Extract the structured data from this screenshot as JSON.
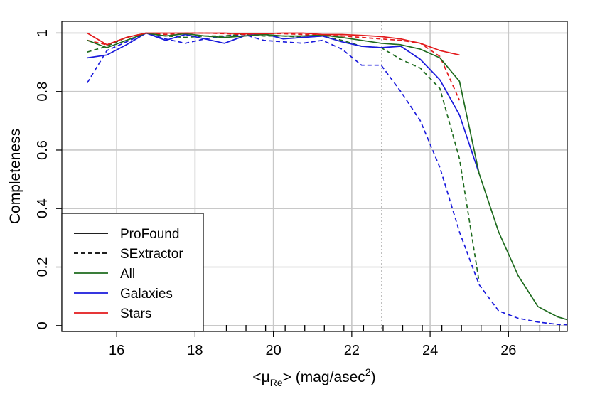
{
  "chart_data": {
    "type": "line",
    "title": "",
    "ylabel": "Completeness",
    "xlabel": {
      "prefix": "<μ",
      "subscript": "Re",
      "middle": "> (mag/asec",
      "superscript": "2",
      "suffix": ")"
    },
    "xlim": [
      14.6,
      27.5
    ],
    "ylim": [
      -0.02,
      1.04
    ],
    "x_ticks": [
      16,
      18,
      20,
      22,
      24,
      26
    ],
    "y_ticks": [
      0,
      0.2,
      0.4,
      0.6,
      0.8,
      1
    ],
    "grid": true,
    "reference_line": {
      "x": 22.77,
      "style": "dotted"
    },
    "rug_x": [
      18.8,
      19.3,
      19.8,
      20.3,
      20.8,
      21.3,
      21.8,
      22.3,
      22.8,
      23.3,
      23.8,
      24.3,
      24.8,
      25.3,
      25.8,
      26.3,
      26.8,
      27.3
    ],
    "legend": {
      "position": "bottom-left",
      "entries": [
        {
          "label": "ProFound",
          "color": "#000000",
          "dash": "solid"
        },
        {
          "label": "SExtractor",
          "color": "#000000",
          "dash": "dashed"
        },
        {
          "label": "All",
          "color": "#1e6b1e",
          "dash": "solid"
        },
        {
          "label": "Galaxies",
          "color": "#1a1adc",
          "dash": "solid"
        },
        {
          "label": "Stars",
          "color": "#e31a1c",
          "dash": "solid"
        }
      ]
    },
    "series": [
      {
        "group": "Galaxies",
        "method": "SExtractor",
        "color": "#1a1adc",
        "dash": "dashed",
        "x": [
          15.25,
          15.75,
          16.25,
          16.75,
          17.25,
          17.75,
          18.25,
          18.75,
          19.25,
          19.75,
          20.25,
          20.75,
          21.25,
          21.75,
          22.25,
          22.75,
          23.25,
          23.75,
          24.25,
          24.75,
          25.25,
          25.75,
          26.25,
          26.75,
          27.25,
          27.5
        ],
        "y": [
          0.83,
          0.94,
          0.97,
          1.0,
          0.98,
          0.965,
          0.98,
          0.99,
          0.995,
          0.975,
          0.97,
          0.965,
          0.975,
          0.945,
          0.89,
          0.89,
          0.8,
          0.7,
          0.54,
          0.32,
          0.14,
          0.05,
          0.025,
          0.012,
          0.004,
          0.003
        ]
      },
      {
        "group": "All",
        "method": "SExtractor",
        "color": "#1e6b1e",
        "dash": "dashed",
        "x": [
          15.25,
          15.75,
          16.25,
          16.75,
          17.25,
          17.75,
          18.25,
          18.75,
          19.25,
          19.75,
          20.25,
          20.75,
          21.25,
          21.75,
          22.25,
          22.75,
          23.25,
          23.75,
          24.25,
          24.75,
          25.25
        ],
        "y": [
          0.935,
          0.955,
          0.985,
          1.0,
          0.99,
          0.985,
          0.99,
          0.99,
          0.997,
          0.99,
          0.99,
          0.985,
          0.99,
          0.975,
          0.955,
          0.95,
          0.91,
          0.88,
          0.81,
          0.57,
          0.15
        ]
      },
      {
        "group": "Stars",
        "method": "SExtractor",
        "color": "#e31a1c",
        "dash": "dashed",
        "x": [
          15.25,
          15.75,
          16.25,
          16.75,
          17.25,
          17.75,
          18.25,
          18.75,
          19.25,
          19.75,
          20.25,
          20.75,
          21.25,
          21.75,
          22.25,
          22.75,
          23.25,
          23.75,
          24.25,
          24.75
        ],
        "y": [
          0.975,
          0.96,
          0.985,
          1.0,
          0.995,
          1.0,
          1.0,
          0.998,
          0.995,
          0.998,
          0.998,
          0.995,
          0.993,
          0.99,
          0.985,
          0.98,
          0.975,
          0.965,
          0.92,
          0.77
        ]
      },
      {
        "group": "Galaxies",
        "method": "ProFound",
        "color": "#1a1adc",
        "dash": "solid",
        "x": [
          15.25,
          15.75,
          16.25,
          16.75,
          17.25,
          17.75,
          18.25,
          18.75,
          19.25,
          19.75,
          20.25,
          20.75,
          21.25,
          21.75,
          22.25,
          22.75,
          23.25,
          23.75,
          24.25,
          24.75,
          25.25
        ],
        "y": [
          0.915,
          0.925,
          0.96,
          1.0,
          0.975,
          0.995,
          0.98,
          0.965,
          0.99,
          0.998,
          0.98,
          0.985,
          0.99,
          0.97,
          0.955,
          0.95,
          0.955,
          0.91,
          0.84,
          0.72,
          0.52
        ]
      },
      {
        "group": "All",
        "method": "ProFound",
        "color": "#1e6b1e",
        "dash": "solid",
        "x": [
          15.25,
          15.75,
          16.25,
          16.75,
          17.25,
          17.75,
          18.25,
          18.75,
          19.25,
          19.75,
          20.25,
          20.75,
          21.25,
          21.75,
          22.25,
          22.75,
          23.25,
          23.75,
          24.25,
          24.75,
          25.25,
          25.75,
          26.25,
          26.75,
          27.25,
          27.5
        ],
        "y": [
          0.975,
          0.95,
          0.975,
          1.0,
          0.99,
          0.998,
          0.99,
          0.985,
          0.99,
          0.995,
          0.99,
          0.99,
          0.993,
          0.985,
          0.975,
          0.965,
          0.96,
          0.945,
          0.915,
          0.835,
          0.52,
          0.32,
          0.17,
          0.065,
          0.03,
          0.02
        ]
      },
      {
        "group": "Stars",
        "method": "ProFound",
        "color": "#e31a1c",
        "dash": "solid",
        "x": [
          15.25,
          15.75,
          16.25,
          16.75,
          17.25,
          17.75,
          18.25,
          18.75,
          19.25,
          19.75,
          20.25,
          20.75,
          21.25,
          21.75,
          22.25,
          22.75,
          23.25,
          23.75,
          24.25,
          24.75
        ],
        "y": [
          1.0,
          0.96,
          0.985,
          1.0,
          1.0,
          1.0,
          1.0,
          1.0,
          0.997,
          0.998,
          1.0,
          1.0,
          0.995,
          0.995,
          0.992,
          0.988,
          0.98,
          0.965,
          0.94,
          0.925
        ]
      }
    ]
  }
}
